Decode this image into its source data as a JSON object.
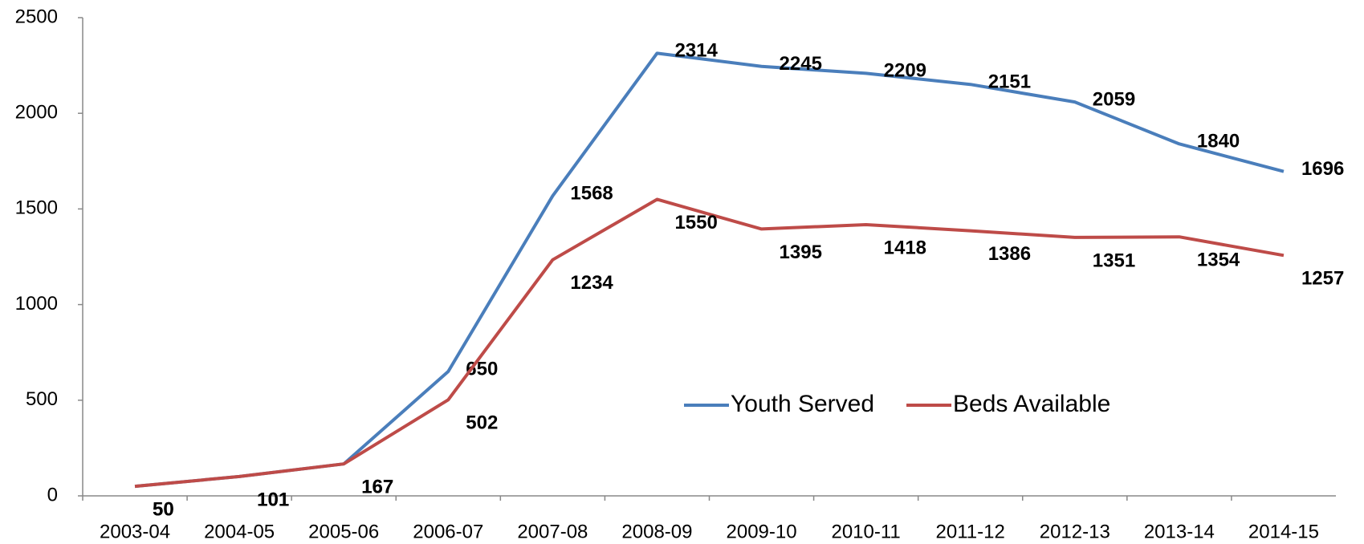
{
  "chart_data": {
    "type": "line",
    "categories": [
      "2003-04",
      "2004-05",
      "2005-06",
      "2006-07",
      "2007-08",
      "2008-09",
      "2009-10",
      "2010-11",
      "2011-12",
      "2012-13",
      "2013-14",
      "2014-15"
    ],
    "series": [
      {
        "name": "Youth Served",
        "color": "#4a7ebb",
        "values": [
          50,
          101,
          167,
          650,
          1568,
          2314,
          2245,
          2209,
          2151,
          2059,
          1840,
          1696
        ]
      },
      {
        "name": "Beds Available",
        "color": "#be4b48",
        "values": [
          50,
          101,
          167,
          502,
          1234,
          1550,
          1395,
          1418,
          1386,
          1351,
          1354,
          1257
        ]
      }
    ],
    "ylim": [
      0,
      2500
    ],
    "yticks": [
      0,
      500,
      1000,
      1500,
      2000,
      2500
    ],
    "grid": false,
    "legend": "center"
  }
}
